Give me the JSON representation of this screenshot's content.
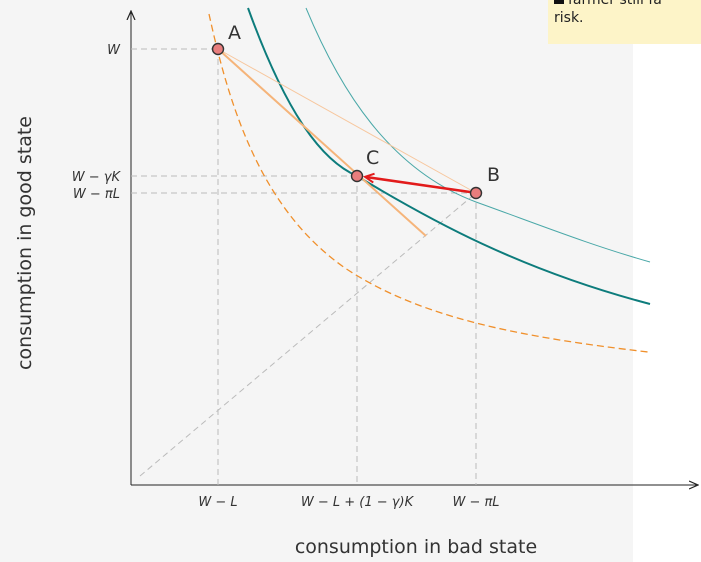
{
  "diagram": {
    "x_axis_label": "consumption in bad state",
    "y_axis_label": "consumption in good state",
    "x_ticks": [
      "W − L",
      "W − L + (1 − γ)K",
      "W − πL"
    ],
    "y_ticks": [
      "W",
      "W − γK",
      "W − πL"
    ],
    "points": [
      {
        "name": "A"
      },
      {
        "name": "C"
      },
      {
        "name": "B"
      }
    ],
    "colors": {
      "indifference_high": "#0d7c7c",
      "indifference_low": "#f0902c",
      "budget": "#f5b47a",
      "arrow": "#e21b1b",
      "point_fill": "#e87d7d",
      "guide": "#bbbbbb"
    }
  },
  "note": {
    "line1": "farmer still fa",
    "line2": "risk."
  }
}
